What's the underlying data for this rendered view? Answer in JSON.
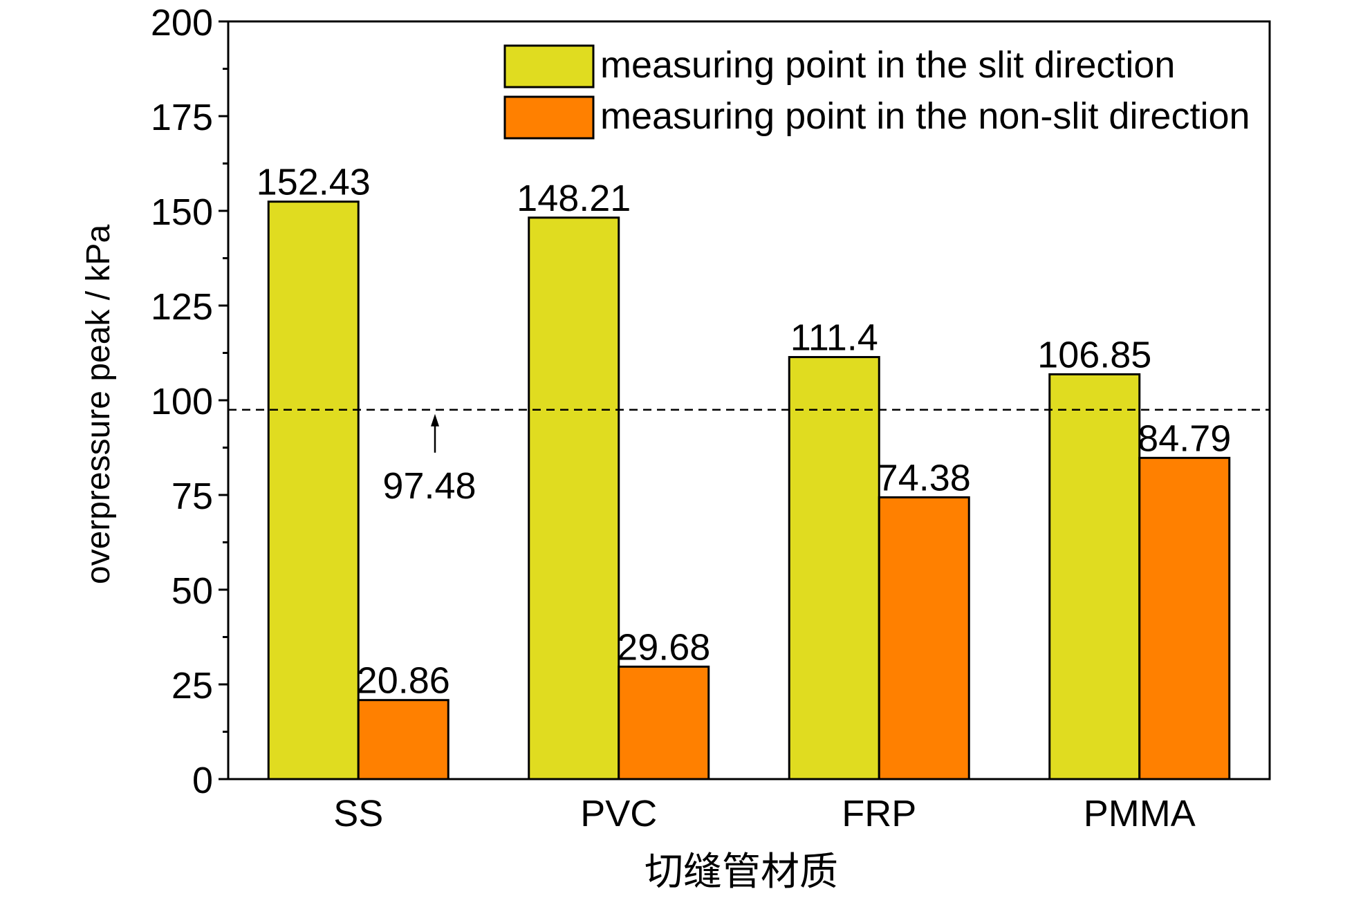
{
  "chart_data": {
    "type": "bar",
    "categories": [
      "SS",
      "PVC",
      "FRP",
      "PMMA"
    ],
    "series": [
      {
        "name": "measuring point in the slit direction",
        "color": "#e0dc20",
        "values": [
          152.43,
          148.21,
          111.4,
          106.85
        ],
        "labels": [
          "152.43",
          "148.21",
          "111.4",
          "106.85"
        ]
      },
      {
        "name": "measuring point in the non-slit direction",
        "color": "#ff8000",
        "values": [
          20.86,
          29.68,
          74.38,
          84.79
        ],
        "labels": [
          "20.86",
          "29.68",
          "74.38",
          "84.79"
        ]
      }
    ],
    "xlabel": "切缝管材质",
    "ylabel": "overpressure peak / kPa",
    "ylim": [
      0,
      200
    ],
    "yticks": [
      0,
      25,
      50,
      75,
      100,
      125,
      150,
      175,
      200
    ],
    "ytick_labels": [
      "0",
      "25",
      "50",
      "75",
      "100",
      "125",
      "150",
      "175",
      "200"
    ],
    "reference_line": {
      "value": 97.48,
      "label": "97.48",
      "style": "dashed"
    },
    "grid": false,
    "legend_position": "top-right"
  }
}
